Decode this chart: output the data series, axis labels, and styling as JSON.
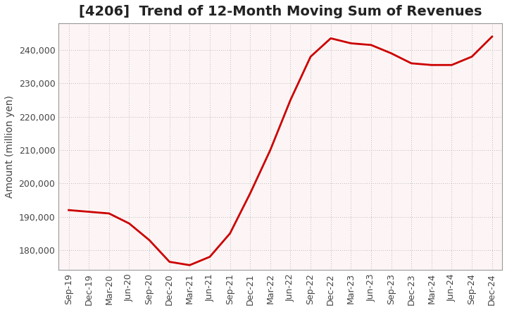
{
  "title": "[4206]  Trend of 12-Month Moving Sum of Revenues",
  "ylabel": "Amount (million yen)",
  "line_color": "#cc0000",
  "background_color": "#ffffff",
  "plot_bg_color": "#fdf5f5",
  "grid_color": "#bbbbbb",
  "x_labels": [
    "Sep-19",
    "Dec-19",
    "Mar-20",
    "Jun-20",
    "Sep-20",
    "Dec-20",
    "Mar-21",
    "Jun-21",
    "Sep-21",
    "Dec-21",
    "Mar-22",
    "Jun-22",
    "Sep-22",
    "Dec-22",
    "Mar-23",
    "Jun-23",
    "Sep-23",
    "Dec-23",
    "Mar-24",
    "Jun-24",
    "Sep-24",
    "Dec-24"
  ],
  "y_values": [
    192000,
    191500,
    191000,
    188000,
    183000,
    176500,
    175500,
    178000,
    185000,
    197000,
    210000,
    225000,
    238000,
    243500,
    242000,
    241500,
    239000,
    236000,
    235500,
    235500,
    238000,
    244000
  ],
  "ylim": [
    174000,
    248000
  ],
  "yticks": [
    180000,
    190000,
    200000,
    210000,
    220000,
    230000,
    240000
  ],
  "title_fontsize": 14,
  "label_fontsize": 10,
  "tick_fontsize": 9
}
